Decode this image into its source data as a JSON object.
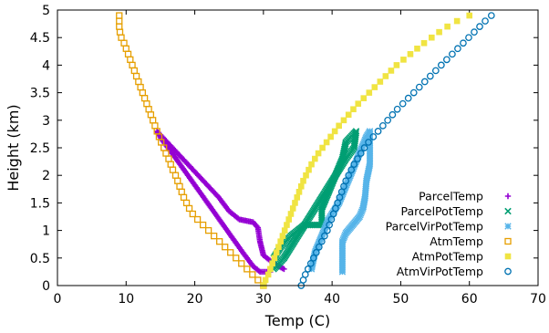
{
  "chart_data": {
    "type": "scatter",
    "title": "",
    "xlabel": "Temp (C)",
    "ylabel": "Height (km)",
    "xlim": [
      0,
      70
    ],
    "ylim": [
      0,
      5
    ],
    "xticks": [
      "0",
      "10",
      "20",
      "30",
      "40",
      "50",
      "60",
      "70"
    ],
    "yticks": [
      "0",
      "0.5",
      "1",
      "1.5",
      "2",
      "2.5",
      "3",
      "3.5",
      "4",
      "4.5",
      "5"
    ],
    "legend_position": "bottom-right",
    "series": [
      {
        "name": "ParcelTemp",
        "marker": "plus",
        "color": "#9400d3",
        "points": [
          [
            33.0,
            0.3
          ],
          [
            31.5,
            0.4
          ],
          [
            30.0,
            0.55
          ],
          [
            29.5,
            0.8
          ],
          [
            29.2,
            1.05
          ],
          [
            28.5,
            1.15
          ],
          [
            26.5,
            1.2
          ],
          [
            25.0,
            1.35
          ],
          [
            23.5,
            1.6
          ],
          [
            22.0,
            1.8
          ],
          [
            20.5,
            2.0
          ],
          [
            19.0,
            2.2
          ],
          [
            17.5,
            2.4
          ],
          [
            16.0,
            2.6
          ],
          [
            14.5,
            2.8
          ],
          [
            15.2,
            2.65
          ],
          [
            17.0,
            2.35
          ],
          [
            19.0,
            2.0
          ],
          [
            21.0,
            1.65
          ],
          [
            23.0,
            1.3
          ],
          [
            25.0,
            0.95
          ],
          [
            27.0,
            0.6
          ],
          [
            28.5,
            0.35
          ],
          [
            29.5,
            0.25
          ],
          [
            31.0,
            0.25
          ]
        ]
      },
      {
        "name": "ParcelPotTemp",
        "marker": "cross",
        "color": "#009e73",
        "points": [
          [
            31.5,
            0.3
          ],
          [
            33.0,
            0.5
          ],
          [
            34.5,
            0.8
          ],
          [
            36.0,
            1.1
          ],
          [
            37.5,
            1.4
          ],
          [
            39.0,
            1.7
          ],
          [
            40.5,
            2.0
          ],
          [
            42.0,
            2.3
          ],
          [
            43.2,
            2.5
          ],
          [
            43.5,
            2.8
          ],
          [
            42.0,
            2.6
          ],
          [
            41.5,
            2.3
          ],
          [
            40.5,
            2.0
          ],
          [
            39.5,
            1.7
          ],
          [
            38.5,
            1.4
          ],
          [
            38.5,
            1.1
          ],
          [
            36.0,
            1.1
          ],
          [
            34.0,
            0.9
          ],
          [
            32.5,
            0.7
          ],
          [
            31.5,
            0.5
          ]
        ]
      },
      {
        "name": "ParcelVirPotTemp",
        "marker": "star",
        "color": "#56b4e9",
        "points": [
          [
            37.0,
            0.3
          ],
          [
            37.5,
            0.6
          ],
          [
            38.5,
            0.9
          ],
          [
            39.5,
            1.2
          ],
          [
            41.0,
            1.5
          ],
          [
            42.0,
            1.8
          ],
          [
            43.0,
            2.1
          ],
          [
            44.0,
            2.4
          ],
          [
            45.0,
            2.7
          ],
          [
            45.5,
            2.8
          ],
          [
            45.5,
            2.5
          ],
          [
            45.5,
            2.2
          ],
          [
            45.0,
            1.9
          ],
          [
            44.8,
            1.6
          ],
          [
            44.5,
            1.4
          ],
          [
            44.0,
            1.25
          ],
          [
            43.0,
            1.1
          ],
          [
            42.0,
            0.95
          ],
          [
            41.5,
            0.8
          ],
          [
            41.5,
            0.6
          ],
          [
            41.5,
            0.4
          ],
          [
            41.5,
            0.25
          ]
        ]
      },
      {
        "name": "AtmTemp",
        "marker": "square-open",
        "color": "#e69f00",
        "points": [
          [
            30.0,
            0.0
          ],
          [
            29.2,
            0.1
          ],
          [
            28.4,
            0.2
          ],
          [
            27.6,
            0.3
          ],
          [
            26.8,
            0.4
          ],
          [
            26.0,
            0.5
          ],
          [
            25.2,
            0.6
          ],
          [
            24.4,
            0.7
          ],
          [
            23.6,
            0.8
          ],
          [
            22.8,
            0.9
          ],
          [
            22.0,
            1.0
          ],
          [
            21.2,
            1.1
          ],
          [
            20.4,
            1.2
          ],
          [
            19.7,
            1.3
          ],
          [
            19.2,
            1.4
          ],
          [
            18.8,
            1.5
          ],
          [
            18.4,
            1.6
          ],
          [
            18.1,
            1.7
          ],
          [
            17.8,
            1.8
          ],
          [
            17.5,
            1.9
          ],
          [
            17.2,
            2.0
          ],
          [
            16.8,
            2.1
          ],
          [
            16.5,
            2.2
          ],
          [
            16.2,
            2.3
          ],
          [
            15.8,
            2.4
          ],
          [
            15.5,
            2.5
          ],
          [
            15.1,
            2.6
          ],
          [
            14.8,
            2.7
          ],
          [
            14.5,
            2.8
          ],
          [
            14.2,
            2.9
          ],
          [
            13.9,
            3.0
          ],
          [
            13.6,
            3.1
          ],
          [
            13.3,
            3.2
          ],
          [
            13.0,
            3.3
          ],
          [
            12.7,
            3.4
          ],
          [
            12.4,
            3.5
          ],
          [
            12.1,
            3.6
          ],
          [
            11.8,
            3.7
          ],
          [
            11.5,
            3.8
          ],
          [
            11.2,
            3.9
          ],
          [
            10.9,
            4.0
          ],
          [
            10.6,
            4.1
          ],
          [
            10.3,
            4.2
          ],
          [
            10.0,
            4.3
          ],
          [
            9.7,
            4.4
          ],
          [
            9.3,
            4.5
          ],
          [
            9.1,
            4.6
          ],
          [
            9.0,
            4.7
          ],
          [
            9.0,
            4.8
          ],
          [
            9.0,
            4.9
          ]
        ]
      },
      {
        "name": "AtmPotTemp",
        "marker": "square-filled",
        "color": "#f0e442",
        "points": [
          [
            30.0,
            0.0
          ],
          [
            30.3,
            0.1
          ],
          [
            30.7,
            0.2
          ],
          [
            31.0,
            0.3
          ],
          [
            31.3,
            0.4
          ],
          [
            31.6,
            0.5
          ],
          [
            31.9,
            0.6
          ],
          [
            32.2,
            0.7
          ],
          [
            32.5,
            0.8
          ],
          [
            32.8,
            0.9
          ],
          [
            33.1,
            1.0
          ],
          [
            33.4,
            1.1
          ],
          [
            33.7,
            1.2
          ],
          [
            34.0,
            1.3
          ],
          [
            34.3,
            1.4
          ],
          [
            34.6,
            1.5
          ],
          [
            34.9,
            1.6
          ],
          [
            35.2,
            1.7
          ],
          [
            35.5,
            1.8
          ],
          [
            35.8,
            1.9
          ],
          [
            36.2,
            2.0
          ],
          [
            36.6,
            2.1
          ],
          [
            37.0,
            2.2
          ],
          [
            37.5,
            2.3
          ],
          [
            38.0,
            2.4
          ],
          [
            38.6,
            2.5
          ],
          [
            39.2,
            2.6
          ],
          [
            39.8,
            2.7
          ],
          [
            40.4,
            2.8
          ],
          [
            41.0,
            2.9
          ],
          [
            41.7,
            3.0
          ],
          [
            42.4,
            3.1
          ],
          [
            43.1,
            3.2
          ],
          [
            43.8,
            3.3
          ],
          [
            44.6,
            3.4
          ],
          [
            45.4,
            3.5
          ],
          [
            46.2,
            3.6
          ],
          [
            47.0,
            3.7
          ],
          [
            47.8,
            3.8
          ],
          [
            48.6,
            3.9
          ],
          [
            49.4,
            4.0
          ],
          [
            50.4,
            4.1
          ],
          [
            51.4,
            4.2
          ],
          [
            52.4,
            4.3
          ],
          [
            53.4,
            4.4
          ],
          [
            54.5,
            4.5
          ],
          [
            55.6,
            4.6
          ],
          [
            56.8,
            4.7
          ],
          [
            58.2,
            4.8
          ],
          [
            60.0,
            4.9
          ]
        ]
      },
      {
        "name": "AtmVirPotTemp",
        "marker": "circle-open",
        "color": "#0072b2",
        "points": [
          [
            35.5,
            0.0
          ],
          [
            35.8,
            0.1
          ],
          [
            36.1,
            0.2
          ],
          [
            36.5,
            0.3
          ],
          [
            36.9,
            0.4
          ],
          [
            37.3,
            0.5
          ],
          [
            37.7,
            0.6
          ],
          [
            38.1,
            0.7
          ],
          [
            38.5,
            0.8
          ],
          [
            38.9,
            0.9
          ],
          [
            39.3,
            1.0
          ],
          [
            39.6,
            1.1
          ],
          [
            39.9,
            1.2
          ],
          [
            40.2,
            1.3
          ],
          [
            40.5,
            1.4
          ],
          [
            40.8,
            1.5
          ],
          [
            41.1,
            1.6
          ],
          [
            41.4,
            1.7
          ],
          [
            41.7,
            1.8
          ],
          [
            42.0,
            1.9
          ],
          [
            42.4,
            2.0
          ],
          [
            42.8,
            2.1
          ],
          [
            43.2,
            2.2
          ],
          [
            43.7,
            2.3
          ],
          [
            44.2,
            2.4
          ],
          [
            44.7,
            2.5
          ],
          [
            45.3,
            2.6
          ],
          [
            46.0,
            2.7
          ],
          [
            46.7,
            2.8
          ],
          [
            47.4,
            2.9
          ],
          [
            48.1,
            3.0
          ],
          [
            48.8,
            3.1
          ],
          [
            49.5,
            3.2
          ],
          [
            50.3,
            3.3
          ],
          [
            51.1,
            3.4
          ],
          [
            51.9,
            3.5
          ],
          [
            52.7,
            3.6
          ],
          [
            53.5,
            3.7
          ],
          [
            54.3,
            3.8
          ],
          [
            55.1,
            3.9
          ],
          [
            55.9,
            4.0
          ],
          [
            56.7,
            4.1
          ],
          [
            57.5,
            4.2
          ],
          [
            58.3,
            4.3
          ],
          [
            59.1,
            4.4
          ],
          [
            59.9,
            4.5
          ],
          [
            60.7,
            4.6
          ],
          [
            61.5,
            4.7
          ],
          [
            62.3,
            4.8
          ],
          [
            63.2,
            4.9
          ]
        ]
      }
    ]
  }
}
